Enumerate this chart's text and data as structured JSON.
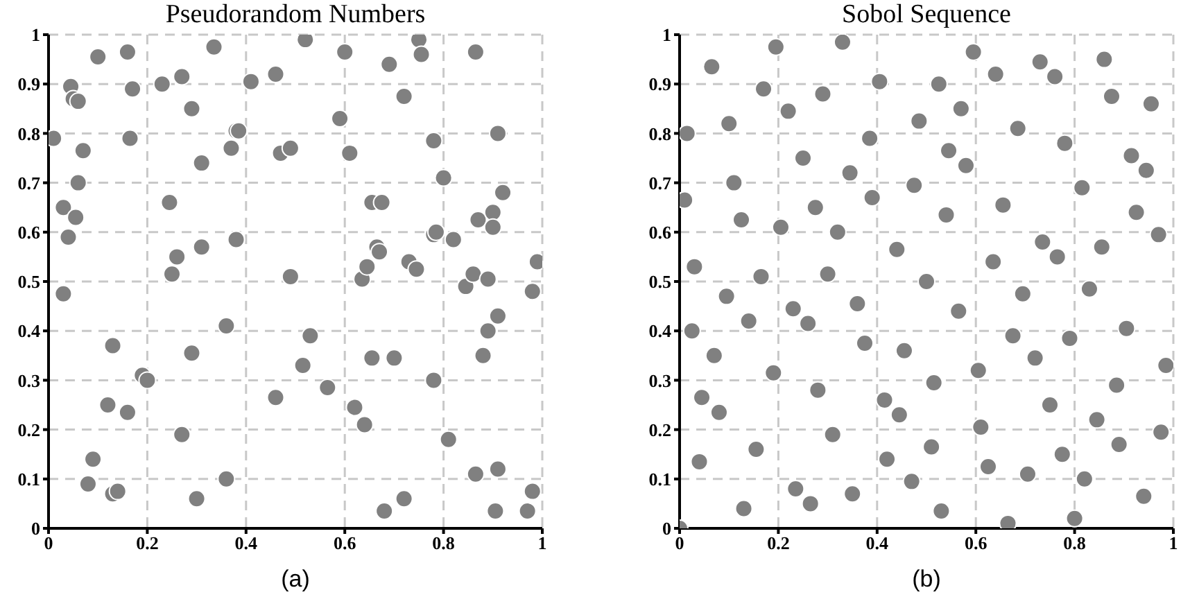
{
  "chart_data": [
    {
      "type": "scatter",
      "title": "Pseudorandom Numbers",
      "annotations": [
        "(a)"
      ],
      "xlim": [
        0,
        1
      ],
      "ylim": [
        0,
        1
      ],
      "xticks": [
        0,
        0.2,
        0.4,
        0.6,
        0.8,
        1
      ],
      "yticks": [
        0,
        0.1,
        0.2,
        0.3,
        0.4,
        0.5,
        0.6,
        0.7,
        0.8,
        0.9,
        1
      ],
      "grid": true,
      "marker": "circle",
      "series": [
        {
          "color": "#808080",
          "x": [
            0.01,
            0.03,
            0.04,
            0.03,
            0.045,
            0.05,
            0.06,
            0.055,
            0.06,
            0.07,
            0.1,
            0.09,
            0.08,
            0.12,
            0.13,
            0.13,
            0.14,
            0.16,
            0.165,
            0.17,
            0.16,
            0.19,
            0.2,
            0.23,
            0.245,
            0.25,
            0.26,
            0.27,
            0.27,
            0.29,
            0.29,
            0.3,
            0.31,
            0.31,
            0.335,
            0.36,
            0.36,
            0.37,
            0.38,
            0.385,
            0.38,
            0.46,
            0.41,
            0.46,
            0.47,
            0.49,
            0.49,
            0.515,
            0.52,
            0.53,
            0.565,
            0.59,
            0.6,
            0.61,
            0.62,
            0.635,
            0.64,
            0.645,
            0.655,
            0.655,
            0.665,
            0.67,
            0.675,
            0.68,
            0.69,
            0.7,
            0.72,
            0.72,
            0.73,
            0.745,
            0.75,
            0.755,
            0.78,
            0.78,
            0.78,
            0.785,
            0.8,
            0.81,
            0.82,
            0.845,
            0.865,
            0.86,
            0.865,
            0.87,
            0.88,
            0.89,
            0.89,
            0.9,
            0.9,
            0.905,
            0.91,
            0.91,
            0.91,
            0.92,
            0.97,
            0.98,
            0.98,
            0.99
          ],
          "values": [
            0.79,
            0.65,
            0.59,
            0.475,
            0.895,
            0.87,
            0.865,
            0.63,
            0.7,
            0.765,
            0.955,
            0.14,
            0.09,
            0.25,
            0.37,
            0.07,
            0.075,
            0.965,
            0.79,
            0.89,
            0.235,
            0.31,
            0.3,
            0.9,
            0.66,
            0.515,
            0.55,
            0.915,
            0.19,
            0.85,
            0.355,
            0.06,
            0.74,
            0.57,
            0.975,
            0.41,
            0.1,
            0.77,
            0.805,
            0.805,
            0.585,
            0.265,
            0.905,
            0.92,
            0.76,
            0.77,
            0.51,
            0.33,
            0.99,
            0.39,
            0.285,
            0.83,
            0.965,
            0.76,
            0.245,
            0.505,
            0.21,
            0.53,
            0.66,
            0.345,
            0.57,
            0.56,
            0.66,
            0.035,
            0.94,
            0.345,
            0.06,
            0.875,
            0.54,
            0.525,
            0.99,
            0.96,
            0.785,
            0.595,
            0.3,
            0.6,
            0.71,
            0.18,
            0.585,
            0.49,
            0.965,
            0.515,
            0.11,
            0.625,
            0.35,
            0.505,
            0.4,
            0.64,
            0.61,
            0.035,
            0.43,
            0.12,
            0.8,
            0.68,
            0.035,
            0.075,
            0.48,
            0.54
          ]
        }
      ]
    },
    {
      "type": "scatter",
      "title": "Sobol Sequence",
      "annotations": [
        "(b)"
      ],
      "xlim": [
        0,
        1
      ],
      "ylim": [
        0,
        1
      ],
      "xticks": [
        0,
        0.2,
        0.4,
        0.6,
        0.8,
        1
      ],
      "yticks": [
        0,
        0.1,
        0.2,
        0.3,
        0.4,
        0.5,
        0.6,
        0.7,
        0.8,
        0.9,
        1
      ],
      "grid": true,
      "marker": "circle",
      "series": [
        {
          "color": "#808080",
          "x": [
            0.01,
            0.015,
            0.03,
            0.065,
            0.1,
            0.11,
            0.125,
            0.165,
            0.17,
            0.195,
            0.205,
            0.22,
            0.25,
            0.275,
            0.29,
            0.3,
            0.32,
            0.33,
            0.345,
            0.385,
            0.39,
            0.405,
            0.44,
            0.475,
            0.485,
            0.5,
            0.525,
            0.54,
            0.545,
            0.57,
            0.58,
            0.595,
            0.635,
            0.64,
            0.655,
            0.685,
            0.73,
            0.735,
            0.76,
            0.765,
            0.78,
            0.815,
            0.855,
            0.86,
            0.875,
            0.915,
            0.925,
            0.945,
            0.955,
            0.97,
            0,
            0.025,
            0.04,
            0.045,
            0.07,
            0.08,
            0.095,
            0.13,
            0.14,
            0.155,
            0.19,
            0.23,
            0.235,
            0.26,
            0.265,
            0.28,
            0.31,
            0.35,
            0.36,
            0.375,
            0.415,
            0.42,
            0.445,
            0.455,
            0.47,
            0.51,
            0.515,
            0.53,
            0.565,
            0.605,
            0.61,
            0.625,
            0.665,
            0.675,
            0.695,
            0.705,
            0.72,
            0.75,
            0.775,
            0.79,
            0.8,
            0.82,
            0.83,
            0.845,
            0.885,
            0.89,
            0.905,
            0.94,
            0.975,
            0.985
          ],
          "values": [
            0.665,
            0.8,
            0.53,
            0.935,
            0.82,
            0.7,
            0.625,
            0.51,
            0.89,
            0.975,
            0.61,
            0.845,
            0.75,
            0.65,
            0.88,
            0.515,
            0.6,
            0.985,
            0.72,
            0.79,
            0.67,
            0.905,
            0.565,
            0.695,
            0.825,
            0.5,
            0.9,
            0.635,
            0.765,
            0.85,
            0.735,
            0.965,
            0.54,
            0.92,
            0.655,
            0.81,
            0.945,
            0.58,
            0.915,
            0.55,
            0.78,
            0.69,
            0.57,
            0.95,
            0.875,
            0.755,
            0.64,
            0.725,
            0.86,
            0.595,
            0,
            0.4,
            0.135,
            0.265,
            0.35,
            0.235,
            0.47,
            0.04,
            0.42,
            0.16,
            0.315,
            0.445,
            0.08,
            0.415,
            0.05,
            0.28,
            0.19,
            0.07,
            0.455,
            0.375,
            0.26,
            0.14,
            0.23,
            0.36,
            0.095,
            0.165,
            0.295,
            0.035,
            0.44,
            0.32,
            0.205,
            0.125,
            0.01,
            0.39,
            0.475,
            0.11,
            0.345,
            0.25,
            0.15,
            0.385,
            0.02,
            0.1,
            0.485,
            0.22,
            0.29,
            0.17,
            0.405,
            0.065,
            0.195,
            0.33
          ]
        }
      ]
    }
  ]
}
